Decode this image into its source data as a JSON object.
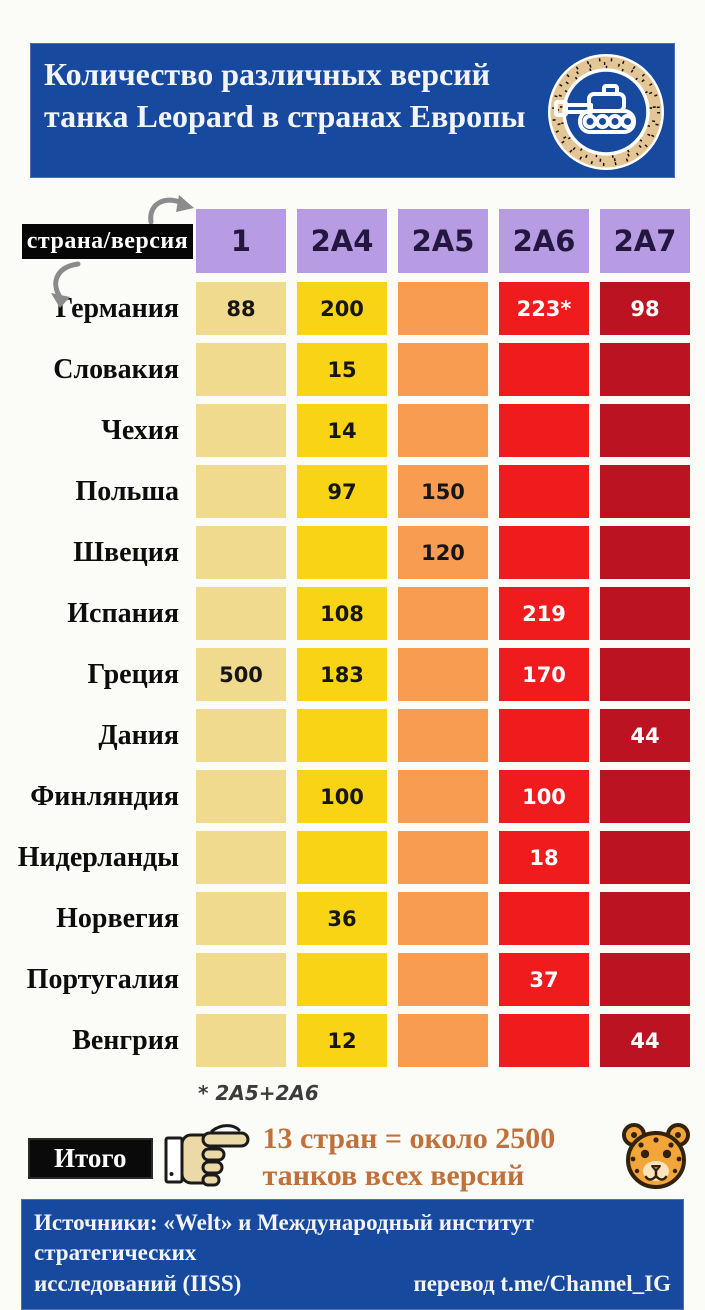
{
  "header": {
    "title": "Количество различных версий танка Leopard в странах Европы",
    "bg_color": "#17499f",
    "badge_icon": "tank-in-leopard-ring"
  },
  "table_header_label": "страна/версия",
  "chart_data": {
    "type": "table",
    "title": "Количество различных версий танка Leopard в странах Европы",
    "columns": [
      "1",
      "2A4",
      "2A5",
      "2A6",
      "2A7"
    ],
    "header_color": "#b79be3",
    "column_colors": [
      "#f0da8e",
      "#f9d414",
      "#f89c52",
      "#ef1b1d",
      "#bc1323"
    ],
    "value_text_colors": [
      "#161616",
      "#161616",
      "#161616",
      "#ffffff",
      "#ffffff"
    ],
    "rows": [
      {
        "country": "Германия",
        "values": [
          "88",
          "200",
          "",
          "223*",
          "98"
        ]
      },
      {
        "country": "Словакия",
        "values": [
          "",
          "15",
          "",
          "",
          ""
        ]
      },
      {
        "country": "Чехия",
        "values": [
          "",
          "14",
          "",
          "",
          ""
        ]
      },
      {
        "country": "Польша",
        "values": [
          "",
          "97",
          "150",
          "",
          ""
        ]
      },
      {
        "country": "Швеция",
        "values": [
          "",
          "",
          "120",
          "",
          ""
        ]
      },
      {
        "country": "Испания",
        "values": [
          "",
          "108",
          "",
          "219",
          ""
        ]
      },
      {
        "country": "Греция",
        "values": [
          "500",
          "183",
          "",
          "170",
          ""
        ]
      },
      {
        "country": "Дания",
        "values": [
          "",
          "",
          "",
          "",
          "44"
        ]
      },
      {
        "country": "Финляндия",
        "values": [
          "",
          "100",
          "",
          "100",
          ""
        ]
      },
      {
        "country": "Нидерланды",
        "values": [
          "",
          "",
          "",
          "18",
          ""
        ]
      },
      {
        "country": "Норвегия",
        "values": [
          "",
          "36",
          "",
          "",
          ""
        ]
      },
      {
        "country": "Португалия",
        "values": [
          "",
          "",
          "",
          "37",
          ""
        ]
      },
      {
        "country": "Венгрия",
        "values": [
          "",
          "12",
          "",
          "",
          "44"
        ]
      }
    ],
    "footnote": "* 2A5+2A6"
  },
  "total": {
    "label": "Итого",
    "line1": "13 стран = около 2500",
    "line2": "танков всех версий",
    "accent_color": "#c1703a",
    "hand_icon": "pointing-hand",
    "leopard_icon": "leopard-face"
  },
  "footer": {
    "sources_line1": "Источники: «Welt» и Международный институт стратегических",
    "sources_line2": "исследований (IISS)",
    "translation": "перевод t.me/Channel_IG"
  }
}
